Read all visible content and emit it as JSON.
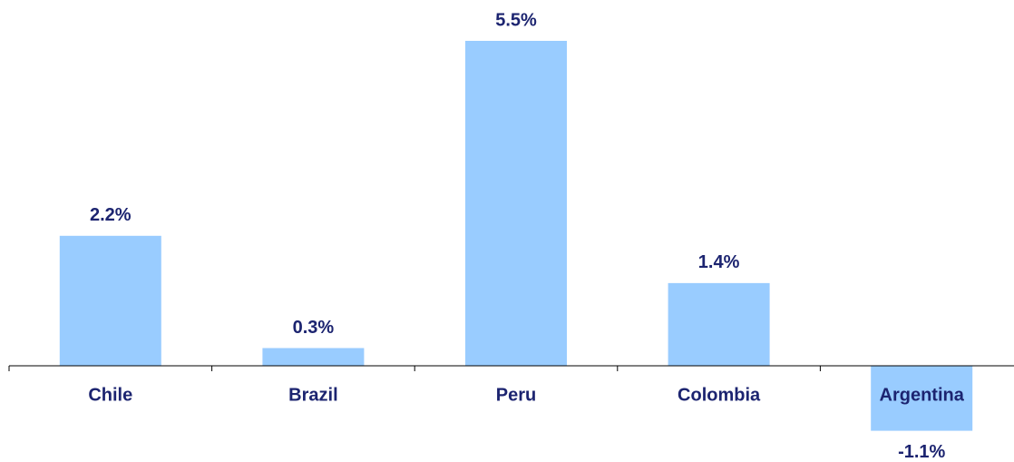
{
  "chart_data": {
    "type": "bar",
    "categories": [
      "Chile",
      "Brazil",
      "Peru",
      "Colombia",
      "Argentina"
    ],
    "values": [
      2.2,
      0.3,
      5.5,
      1.4,
      -1.1
    ],
    "value_labels": [
      "2.2%",
      "0.3%",
      "5.5%",
      "1.4%",
      "-1.1%"
    ],
    "color": "#99ccff"
  }
}
